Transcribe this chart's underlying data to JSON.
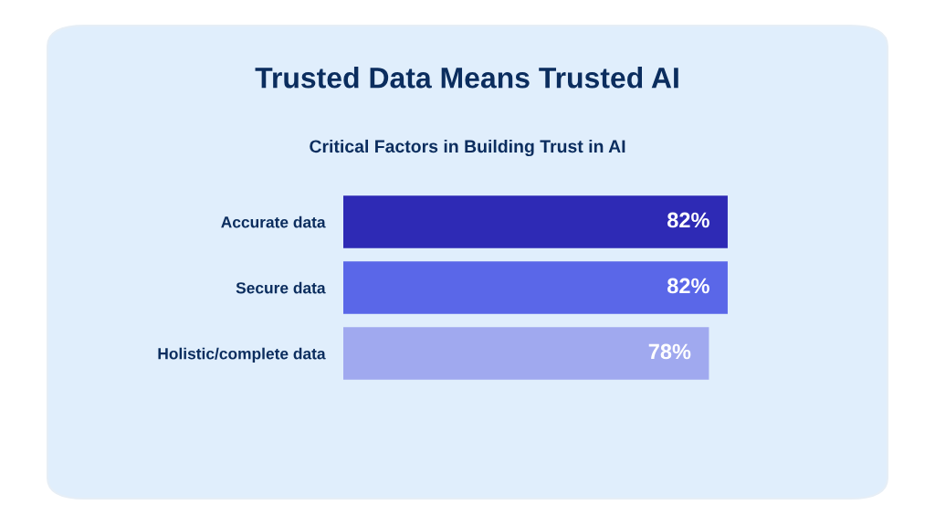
{
  "chart_data": {
    "type": "bar",
    "orientation": "horizontal",
    "title": "Trusted Data Means Trusted AI",
    "subtitle": "Critical Factors in Building Trust in AI",
    "categories": [
      "Accurate data",
      "Secure data",
      "Holistic/complete data"
    ],
    "values": [
      82,
      82,
      78
    ],
    "colors": [
      "#2e2ab5",
      "#5a67e8",
      "#a0a9ef"
    ],
    "value_labels": [
      "82%",
      "82%",
      "78%"
    ],
    "tick_labels": "y",
    "legend": false
  }
}
